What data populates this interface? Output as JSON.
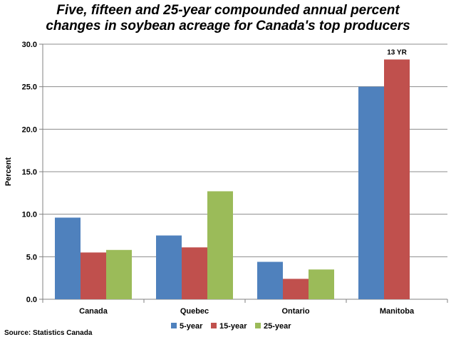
{
  "chart_data": {
    "type": "bar",
    "title_lines": [
      "Five, fifteen and 25-year compounded annual percent",
      "changes in soybean acreage for Canada's top producers"
    ],
    "xlabel": "",
    "ylabel": "Percent",
    "ylim": [
      0,
      30
    ],
    "yticks": [
      "0.0",
      "5.0",
      "10.0",
      "15.0",
      "20.0",
      "25.0",
      "30.0"
    ],
    "grid": true,
    "legend_position": "bottom",
    "categories": [
      "Canada",
      "Quebec",
      "Ontario",
      "Manitoba"
    ],
    "series": [
      {
        "name": "5-year",
        "color": "#4f81bd",
        "values": [
          9.6,
          7.5,
          4.4,
          25.0
        ]
      },
      {
        "name": "15-year",
        "color": "#c0504d",
        "values": [
          5.5,
          6.1,
          2.4,
          28.2
        ]
      },
      {
        "name": "25-year",
        "color": "#9bbb59",
        "values": [
          5.8,
          12.7,
          3.5,
          null
        ]
      }
    ],
    "annotations": [
      {
        "category": "Manitoba",
        "series": "15-year",
        "text": "13 YR"
      }
    ],
    "source": "Source: Statistics Canada"
  }
}
